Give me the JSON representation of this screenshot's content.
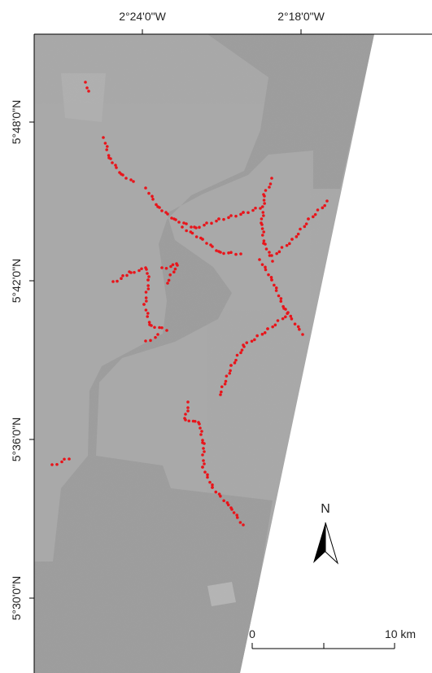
{
  "map": {
    "lon_labels": [
      "2°24'0\"W",
      "2°18'0\"W"
    ],
    "lat_labels": [
      "5°48'0\"N",
      "5°42'0\"N",
      "5°36'0\"N",
      "5°30'0\"N"
    ],
    "north": "N",
    "scale_bar": [
      "0",
      "10 km"
    ]
  }
}
